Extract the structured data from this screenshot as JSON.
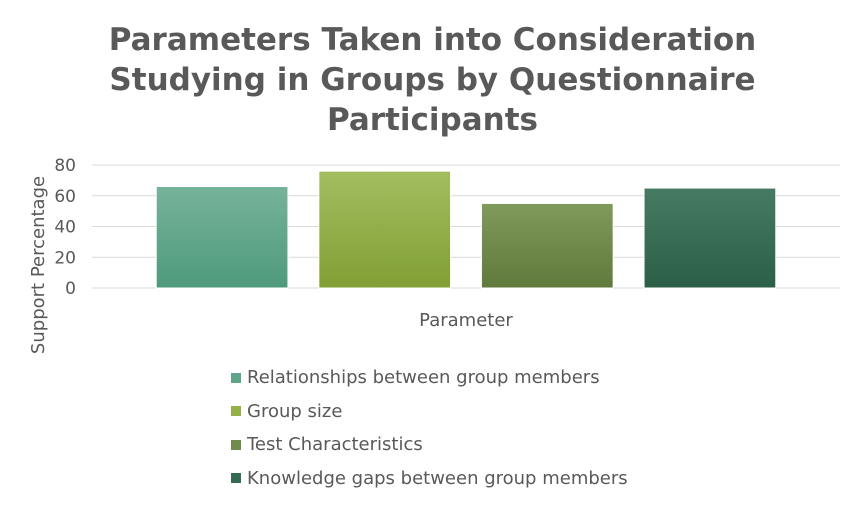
{
  "chart_data": {
    "type": "bar",
    "title_lines": [
      "Parameters Taken into Consideration",
      "Studying in Groups by Questionnaire",
      "Participants"
    ],
    "xlabel": "Parameter",
    "ylabel": "Support Percentage",
    "ylim": [
      0,
      80
    ],
    "yticks": [
      "0",
      "20",
      "40",
      "60",
      "80"
    ],
    "grid": true,
    "legend_position": "bottom",
    "categories": [
      "Parameter"
    ],
    "series": [
      {
        "name": "Relationships between group members",
        "values": [
          66
        ],
        "color": "#5fa58a"
      },
      {
        "name": "Group size",
        "values": [
          76
        ],
        "color": "#93b146"
      },
      {
        "name": "Test Characteristics",
        "values": [
          55
        ],
        "color": "#6f8a4a"
      },
      {
        "name": "Knowledge gaps between group members",
        "values": [
          65
        ],
        "color": "#346a52"
      }
    ]
  }
}
